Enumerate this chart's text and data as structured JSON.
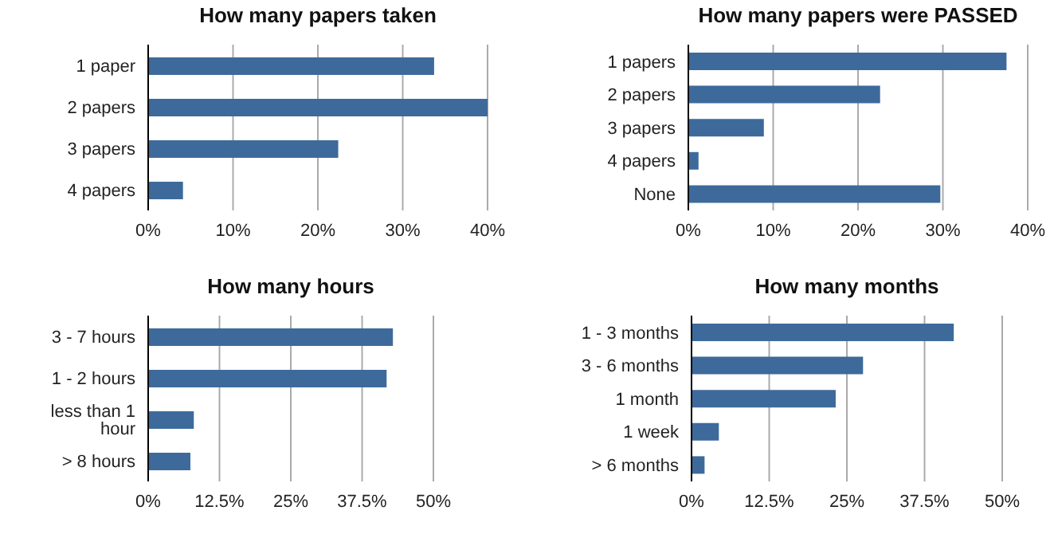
{
  "chart_data": [
    {
      "type": "bar",
      "orientation": "horizontal",
      "title": "How many papers taken",
      "categories": [
        "1 paper",
        "2 papers",
        "3 papers",
        "4 papers"
      ],
      "values": [
        33.7,
        40,
        22.4,
        4.1
      ],
      "color": "#3d6a9b",
      "xlim": [
        0,
        40
      ],
      "xticks": [
        {
          "value": 0,
          "label": "0%"
        },
        {
          "value": 10,
          "label": "10%"
        },
        {
          "value": 20,
          "label": "20%"
        },
        {
          "value": 30,
          "label": "30%"
        },
        {
          "value": 40,
          "label": "40%"
        }
      ],
      "grid": "x"
    },
    {
      "type": "bar",
      "orientation": "horizontal",
      "title": "How many papers were PASSED",
      "categories": [
        "1 papers",
        "2 papers",
        "3 papers",
        "4 papers",
        "None"
      ],
      "values": [
        37.5,
        22.6,
        8.9,
        1.2,
        29.7
      ],
      "color": "#3d6a9b",
      "xlim": [
        0,
        40
      ],
      "xticks": [
        {
          "value": 0,
          "label": "0%"
        },
        {
          "value": 10,
          "label": "10%"
        },
        {
          "value": 20,
          "label": "20%"
        },
        {
          "value": 30,
          "label": "30%"
        },
        {
          "value": 40,
          "label": "40%"
        }
      ],
      "grid": "x"
    },
    {
      "type": "bar",
      "orientation": "horizontal",
      "title": "How many hours",
      "categories": [
        "3 - 7 hours",
        "1 - 2 hours",
        "less than 1 hour",
        "> 8 hours"
      ],
      "values": [
        42.9,
        41.8,
        8,
        7.4
      ],
      "color": "#3d6a9b",
      "xlim": [
        0,
        50
      ],
      "xticks": [
        {
          "value": 0,
          "label": "0%"
        },
        {
          "value": 12.5,
          "label": "12.5%"
        },
        {
          "value": 25,
          "label": "25%"
        },
        {
          "value": 37.5,
          "label": "37.5%"
        },
        {
          "value": 50,
          "label": "50%"
        }
      ],
      "grid": "x"
    },
    {
      "type": "bar",
      "orientation": "horizontal",
      "title": "How many months",
      "categories": [
        "1 - 3 months",
        "3 - 6 months",
        "1 month",
        "1 week",
        "> 6 months"
      ],
      "values": [
        42.2,
        27.6,
        23.2,
        4.4,
        2.1
      ],
      "color": "#3d6a9b",
      "xlim": [
        0,
        50
      ],
      "xticks": [
        {
          "value": 0,
          "label": "0%"
        },
        {
          "value": 12.5,
          "label": "12.5%"
        },
        {
          "value": 25,
          "label": "25%"
        },
        {
          "value": 37.5,
          "label": "37.5%"
        },
        {
          "value": 50,
          "label": "50%"
        }
      ],
      "grid": "x"
    }
  ]
}
